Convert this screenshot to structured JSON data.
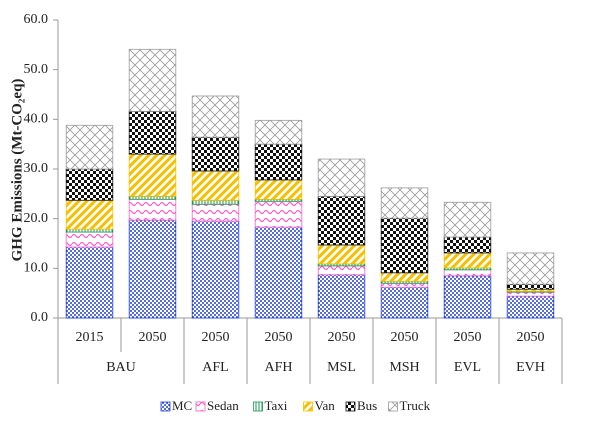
{
  "chart_data": {
    "type": "stacked_bar",
    "y_axis_label": "GHG Emissions (Mt-CO₂eq)",
    "categories": [
      "2015",
      "2050",
      "2050",
      "2050",
      "2050",
      "2050",
      "2050",
      "2050"
    ],
    "group_labels": [
      "BAU",
      "BAU",
      "AFL",
      "AFH",
      "MSL",
      "MSH",
      "EVL",
      "EVH"
    ],
    "series": [
      {
        "name": "MC",
        "color": "#1f3fd9",
        "pattern": "dots",
        "values": [
          14.3,
          19.7,
          19.5,
          18.3,
          8.7,
          6.2,
          8.5,
          4.4
        ]
      },
      {
        "name": "Sedan",
        "color": "#ff5fc8",
        "pattern": "waves",
        "values": [
          3.0,
          4.2,
          3.4,
          5.2,
          1.8,
          0.8,
          1.2,
          0.8
        ]
      },
      {
        "name": "Taxi",
        "color": "#1a9a50",
        "pattern": "vertical",
        "values": [
          0.6,
          0.6,
          0.8,
          0.4,
          0.4,
          0.4,
          0.4,
          0.2
        ]
      },
      {
        "name": "Van",
        "color": "#f5c000",
        "pattern": "diagonal",
        "values": [
          5.8,
          8.5,
          5.9,
          3.9,
          3.8,
          1.7,
          3.0,
          0.4
        ]
      },
      {
        "name": "Bus",
        "color": "#111111",
        "pattern": "checker",
        "values": [
          6.3,
          8.6,
          6.8,
          7.2,
          9.8,
          11.0,
          3.2,
          1.0
        ]
      },
      {
        "name": "Truck",
        "color": "#9a9a9a",
        "pattern": "crosshatch",
        "values": [
          8.8,
          12.5,
          8.3,
          4.8,
          7.5,
          6.1,
          7.0,
          6.3
        ]
      }
    ],
    "ylim": [
      0,
      60
    ],
    "yticks": [
      {
        "value": 0,
        "label": "0.0"
      },
      {
        "value": 10,
        "label": "10.0"
      },
      {
        "value": 20,
        "label": "20.0"
      },
      {
        "value": 30,
        "label": "30.0"
      },
      {
        "value": 40,
        "label": "40.0"
      },
      {
        "value": 50,
        "label": "50.0"
      },
      {
        "value": 60,
        "label": "60.0"
      }
    ],
    "grid": false,
    "legend": "bottom"
  }
}
